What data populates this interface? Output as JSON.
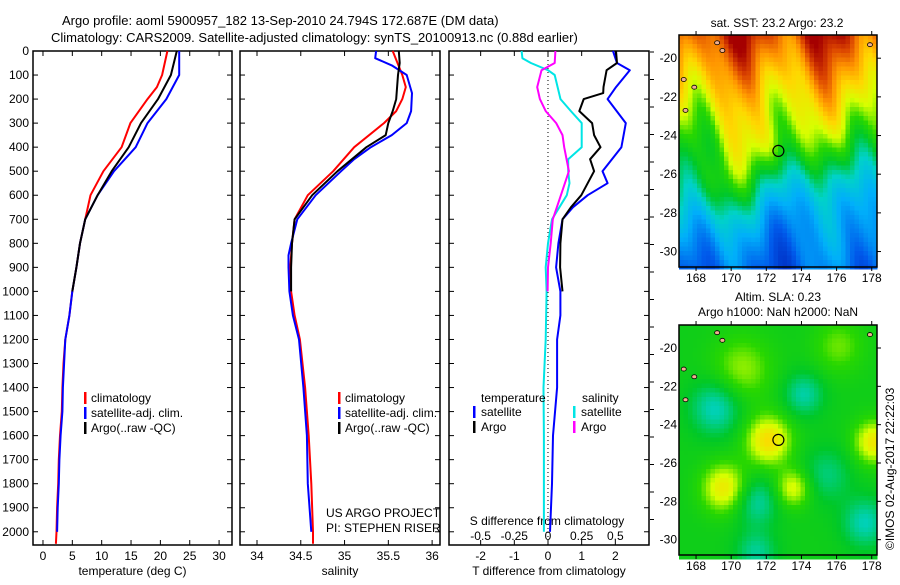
{
  "title_line1": "Argo profile: aoml 5900957_182 13-Sep-2010 24.794S 172.687E (DM data)",
  "title_line2": "Climatology: CARS2009. Satellite-adjusted climatology: synTS_20100913.nc (0.88d earlier)",
  "credit": "©IMOS 02-Aug-2017 22:22:03",
  "colors": {
    "climatology": "#ff0000",
    "satellite": "#0000ff",
    "argo": "#000000",
    "s_satellite": "#00e5e5",
    "s_argo": "#ff00ff"
  },
  "chart_data": [
    {
      "type": "line",
      "name": "temperature",
      "xlabel": "temperature (deg C)",
      "xlim": [
        -1.7,
        32.2
      ],
      "ylim": [
        0,
        2055
      ],
      "yticks": [
        0,
        100,
        200,
        300,
        400,
        500,
        600,
        700,
        800,
        900,
        1000,
        1100,
        1200,
        1300,
        1400,
        1500,
        1600,
        1700,
        1800,
        1900,
        2000
      ],
      "xticks": [
        0,
        5,
        10,
        15,
        20,
        25,
        30
      ],
      "legend": [
        "climatology",
        "satellite-adj. clim.",
        "Argo(..raw -QC)"
      ],
      "series": [
        {
          "name": "climatology",
          "color": "#ff0000",
          "depth": [
            0,
            100,
            150,
            200,
            300,
            400,
            500,
            600,
            700,
            800,
            900,
            1000,
            1100,
            1200,
            1300,
            1400,
            1500,
            1600,
            1700,
            1800,
            1900,
            2000,
            2050
          ],
          "values": [
            21.2,
            20.3,
            19.4,
            17.8,
            14.9,
            13.4,
            10.3,
            8.1,
            7.2,
            6.3,
            5.7,
            5.0,
            4.5,
            3.8,
            3.5,
            3.3,
            3.2,
            2.9,
            2.7,
            2.6,
            2.4,
            2.3,
            2.2
          ]
        },
        {
          "name": "satellite-adj. clim.",
          "color": "#0000ff",
          "depth": [
            0,
            100,
            200,
            300,
            400,
            500,
            600,
            700,
            800,
            900,
            1000,
            1100,
            1200,
            1300,
            1400,
            1500,
            1600,
            1700,
            1800,
            1900,
            2000
          ],
          "values": [
            23.2,
            23.2,
            21.0,
            17.8,
            15.8,
            12.1,
            9.3,
            7.2,
            6.3,
            5.7,
            5.0,
            4.5,
            3.8,
            3.6,
            3.4,
            3.3,
            3.0,
            2.8,
            2.7,
            2.5,
            2.4
          ]
        },
        {
          "name": "Argo(..raw -QC)",
          "color": "#000000",
          "depth": [
            0,
            100,
            200,
            300,
            400,
            500,
            600,
            700,
            800,
            900,
            1000
          ],
          "values": [
            22.8,
            21.8,
            19.6,
            16.7,
            14.6,
            11.7,
            9.3,
            7.2,
            6.3,
            5.7,
            5.0
          ]
        }
      ]
    },
    {
      "type": "line",
      "name": "salinity",
      "xlabel": "salinity",
      "xlim": [
        33.806,
        36.09
      ],
      "ylim": [
        0,
        2055
      ],
      "xticks": [
        34,
        34.5,
        35,
        35.5,
        36
      ],
      "legend": [
        "climatology",
        "satellite-adj. clim.",
        "Argo(..raw -QC)"
      ],
      "annotation": [
        "US ARGO PROJECT",
        "PI: STEPHEN RISER"
      ],
      "series": [
        {
          "name": "climatology",
          "color": "#ff0000",
          "depth": [
            0,
            100,
            150,
            200,
            250,
            300,
            400,
            500,
            600,
            700,
            800,
            900,
            1000,
            1100,
            1200,
            1400,
            1600,
            1800,
            2000,
            2050
          ],
          "values": [
            35.55,
            35.66,
            35.7,
            35.66,
            35.59,
            35.45,
            35.11,
            34.87,
            34.58,
            34.43,
            34.4,
            34.38,
            34.39,
            34.43,
            34.49,
            34.55,
            34.59,
            34.62,
            34.64,
            34.64
          ]
        },
        {
          "name": "satellite-adj. clim.",
          "color": "#0000ff",
          "depth": [
            0,
            30,
            60,
            100,
            175,
            250,
            300,
            350,
            400,
            450,
            500,
            600,
            700,
            800,
            850,
            900,
            1000,
            1100,
            1200,
            1400,
            1600,
            1800,
            2000
          ],
          "values": [
            35.36,
            35.35,
            35.54,
            35.71,
            35.77,
            35.76,
            35.71,
            35.54,
            35.3,
            35.11,
            34.96,
            34.67,
            34.46,
            34.39,
            34.36,
            34.36,
            34.37,
            34.41,
            34.48,
            34.53,
            34.57,
            34.58,
            34.62
          ]
        },
        {
          "name": "Argo(..raw -QC)",
          "color": "#000000",
          "depth": [
            0,
            50,
            100,
            200,
            250,
            300,
            350,
            400,
            500,
            600,
            700,
            800,
            900,
            1000
          ],
          "values": [
            35.62,
            35.63,
            35.61,
            35.59,
            35.55,
            35.5,
            35.47,
            35.25,
            34.92,
            34.63,
            34.43,
            34.4,
            34.39,
            34.39
          ]
        }
      ]
    },
    {
      "type": "line",
      "name": "difference",
      "xlabel": "T difference from climatology",
      "x2label": "S difference from climatology",
      "xlim": [
        -2.94,
        3.0
      ],
      "ylim": [
        0,
        2055
      ],
      "xticks": [
        -2,
        -1,
        0,
        1,
        2
      ],
      "x2ticks": [
        "-0.5",
        "-0.25",
        "0",
        "0.25",
        "0.5"
      ],
      "legend_headers": [
        "temperature",
        "salinity"
      ],
      "legend": [
        "satellite",
        "Argo",
        "satellite",
        "Argo"
      ],
      "series": [
        {
          "name": "T satellite",
          "axis": "T",
          "color": "#0000ff",
          "depth": [
            0,
            50,
            80,
            150,
            200,
            300,
            400,
            500,
            550,
            600,
            650,
            700,
            800,
            900,
            1000,
            1100,
            1200,
            1400,
            1600,
            1800,
            2000
          ],
          "values": [
            1.93,
            2.05,
            2.43,
            2.02,
            1.77,
            2.31,
            2.18,
            1.62,
            1.77,
            1.18,
            0.74,
            0.43,
            0.31,
            0.24,
            0.37,
            0.37,
            0.27,
            0.27,
            0.15,
            0.12,
            0.06
          ]
        },
        {
          "name": "T Argo",
          "axis": "T",
          "color": "#000000",
          "depth": [
            0,
            50,
            80,
            150,
            175,
            200,
            250,
            300,
            350,
            400,
            450,
            500,
            600,
            650,
            700,
            800,
            900,
            1000
          ],
          "values": [
            2.02,
            2.05,
            1.74,
            1.65,
            1.64,
            1.06,
            0.93,
            1.31,
            1.37,
            1.56,
            1.25,
            1.37,
            0.99,
            0.68,
            0.43,
            0.37,
            0.36,
            0.43
          ]
        },
        {
          "name": "S satellite",
          "axis": "S",
          "color": "#00e5e5",
          "depth": [
            0,
            30,
            50,
            80,
            100,
            200,
            250,
            300,
            400,
            450,
            500,
            550,
            600,
            700,
            800,
            900,
            1000,
            1200,
            1400,
            1600,
            1800,
            2000
          ],
          "values": [
            -0.196,
            -0.19,
            -0.127,
            0,
            0.05,
            0.093,
            0.17,
            0.25,
            0.25,
            0.15,
            0.15,
            0.16,
            0.14,
            0.03,
            0,
            -0.017,
            -0.01,
            -0.017,
            -0.033,
            -0.03,
            -0.03,
            -0.03
          ]
        },
        {
          "name": "S Argo",
          "axis": "S",
          "color": "#ff00ff",
          "depth": [
            0,
            50,
            80,
            150,
            200,
            250,
            300,
            350,
            400,
            500,
            600,
            700,
            800,
            900,
            1000
          ],
          "values": [
            0.055,
            0.05,
            -0.048,
            -0.08,
            -0.06,
            -0.017,
            0.061,
            0.108,
            0.12,
            0.155,
            0.096,
            0.036,
            0.02,
            0,
            -0.003
          ]
        }
      ]
    },
    {
      "type": "heatmap",
      "name": "sst-map",
      "title": "sat. SST: 23.2 Argo: 23.2",
      "xlim": [
        167.03,
        178.3
      ],
      "ylim": [
        -30.8,
        -18.8
      ],
      "xticks": [
        168,
        170,
        172,
        174,
        176,
        178
      ],
      "yticks": [
        -20,
        -22,
        -24,
        -26,
        -28,
        -30
      ],
      "marker": {
        "lon": 172.687,
        "lat": -24.794
      }
    },
    {
      "type": "heatmap",
      "name": "sla-map",
      "title": "Altim. SLA: 0.23",
      "subtitle": "Argo h1000: NaN h2000: NaN",
      "xlim": [
        167.03,
        178.3
      ],
      "ylim": [
        -30.8,
        -18.8
      ],
      "xticks": [
        168,
        170,
        172,
        174,
        176,
        178
      ],
      "yticks": [
        -20,
        -22,
        -24,
        -26,
        -28,
        -30
      ],
      "marker": {
        "lon": 172.687,
        "lat": -24.794
      }
    }
  ]
}
